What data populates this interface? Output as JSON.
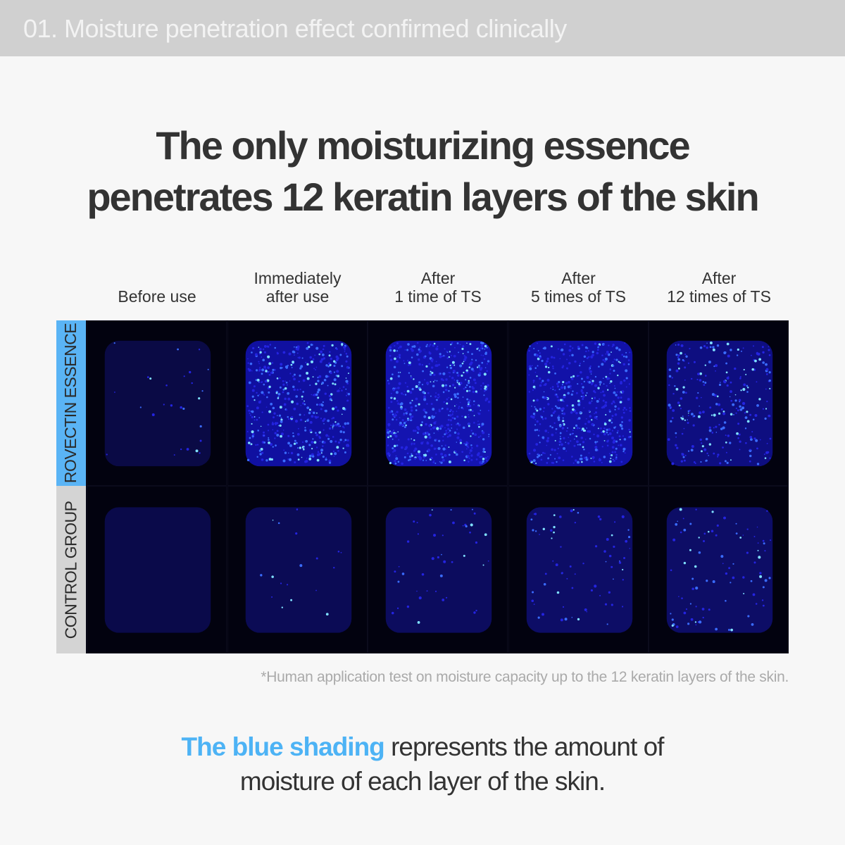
{
  "banner": {
    "title": "01. Moisture penetration effect confirmed clinically"
  },
  "headline": {
    "line1": "The only moisturizing essence",
    "line2": "penetrates 12 keratin layers of the skin"
  },
  "columns": [
    {
      "line1": "",
      "line2": "Before use"
    },
    {
      "line1": "Immediately",
      "line2": "after use"
    },
    {
      "line1": "After",
      "line2": "1 time of TS"
    },
    {
      "line1": "After",
      "line2": "5 times of TS"
    },
    {
      "line1": "After",
      "line2": "12 times of TS"
    }
  ],
  "rows": [
    {
      "label": "ROVECTIN ESSENCE",
      "color": "#5ab4f5"
    },
    {
      "label": "CONTROL GROUP",
      "color": "#d4d4d4"
    }
  ],
  "footnote": "*Human application test on moisture capacity up to the 12 keratin layers of the skin.",
  "caption": {
    "highlight": "The blue shading",
    "rest": " represents the amount of",
    "line2": "moisture of each layer of the skin."
  },
  "colors": {
    "accent": "#4db3f5",
    "banner": "#d0d0d0"
  }
}
